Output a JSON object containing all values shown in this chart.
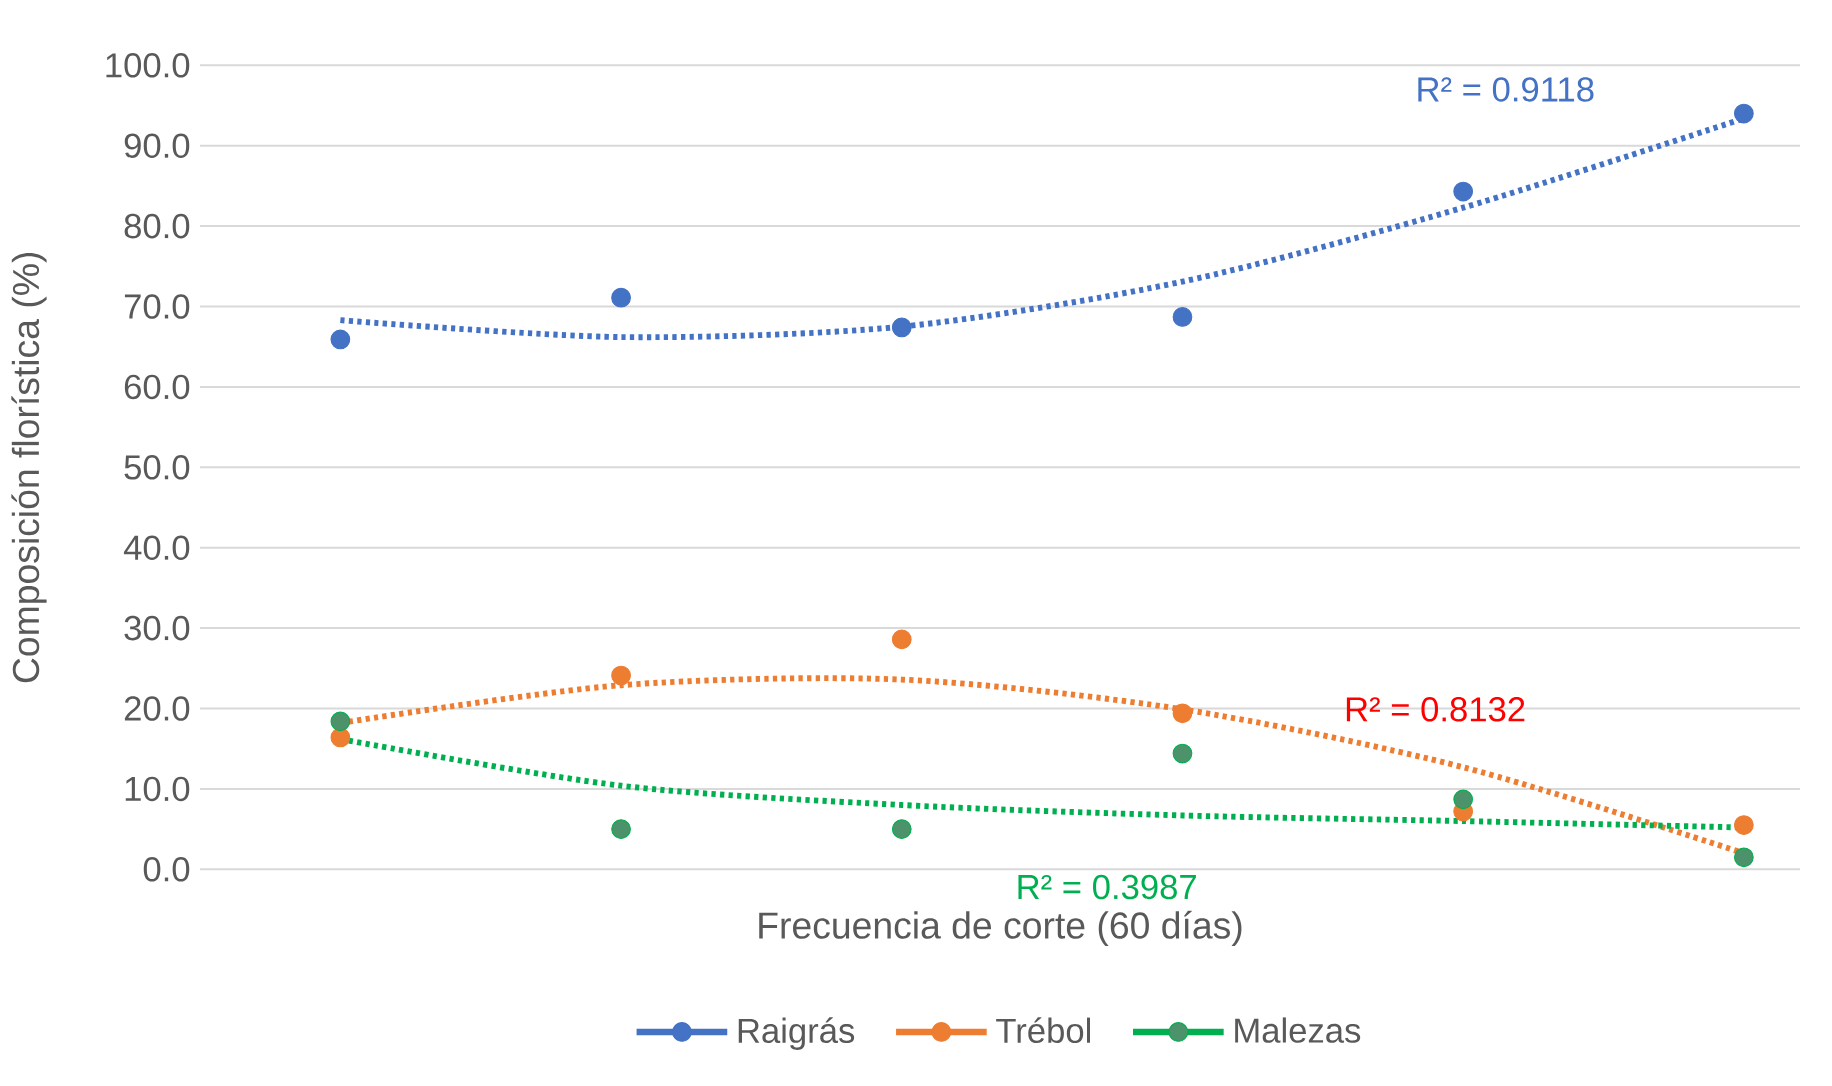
{
  "chart_data": {
    "type": "scatter",
    "xlabel": "Frecuencia de corte (60 días)",
    "ylabel": "Composición florística (%)",
    "categories": [
      null,
      null,
      null,
      null,
      null,
      null
    ],
    "ylim": [
      0,
      100
    ],
    "yticks": [
      {
        "value": 0,
        "label": "0.0"
      },
      {
        "value": 10,
        "label": "10.0"
      },
      {
        "value": 20,
        "label": "20.0"
      },
      {
        "value": 30,
        "label": "30.0"
      },
      {
        "value": 40,
        "label": "40.0"
      },
      {
        "value": 50,
        "label": "50.0"
      },
      {
        "value": 60,
        "label": "60.0"
      },
      {
        "value": 70,
        "label": "70.0"
      },
      {
        "value": 80,
        "label": "80.0"
      },
      {
        "value": 90,
        "label": "90.0"
      },
      {
        "value": 100,
        "label": "100.0"
      }
    ],
    "grid": "y",
    "legend": "bottom",
    "marker": "circle",
    "series": [
      {
        "name": "Raigrás",
        "color": "#4472c4",
        "values": [
          65.9,
          71.1,
          67.4,
          68.7,
          84.3,
          94.0
        ]
      },
      {
        "name": "Trébol",
        "color": "#ed7d31",
        "values": [
          16.4,
          24.1,
          28.6,
          19.4,
          7.2,
          5.5
        ]
      },
      {
        "name": "Malezas",
        "color": "#00b050",
        "values": [
          18.4,
          5.0,
          5.0,
          14.4,
          8.7,
          1.5
        ]
      },
      {
        "type": "line",
        "line_style": "dotted",
        "marker": "none",
        "color": "#4472c4",
        "values": [
          68.3,
          66.2,
          67.5,
          73.1,
          82.3,
          93.4
        ]
      },
      {
        "type": "line",
        "line_style": "dotted",
        "marker": "none",
        "color": "#ed7d31",
        "values": [
          18.2,
          22.9,
          23.6,
          19.9,
          12.7,
          2.0
        ]
      },
      {
        "type": "line",
        "line_style": "dotted",
        "marker": "none",
        "color": "#00b050",
        "values": [
          16.2,
          10.4,
          8.0,
          6.7,
          6.0,
          5.2
        ]
      }
    ],
    "annotations": [
      "R² = 0.9118",
      "R² = 0.8132",
      "R² = 0.3987"
    ]
  }
}
